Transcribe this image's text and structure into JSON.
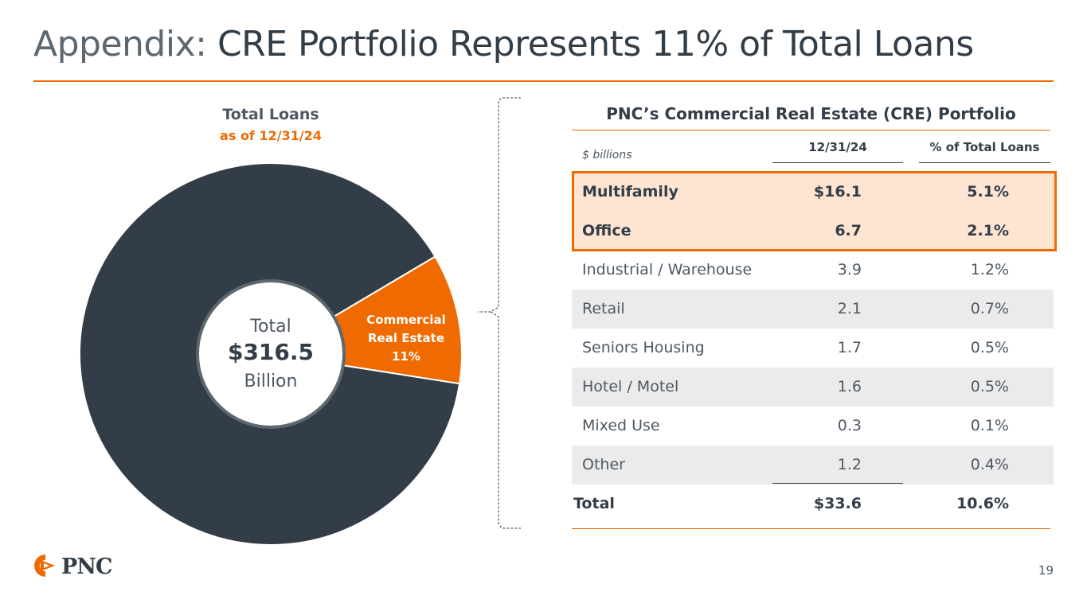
{
  "title": {
    "prefix": "Appendix:",
    "main": "CRE Portfolio Represents 11% of Total Loans"
  },
  "colors": {
    "accent": "#ef6a00",
    "dark": "#333d47",
    "highlight_fill": "#fde5d2"
  },
  "pie": {
    "title": "Total Loans",
    "subtitle": "as of 12/31/24",
    "center_line1": "Total",
    "center_line2": "$316.5",
    "center_line3": "Billion",
    "slice_label_1": "Commercial",
    "slice_label_2": "Real Estate",
    "slice_label_3": "11%"
  },
  "table": {
    "title": "PNC’s Commercial Real Estate (CRE) Portfolio",
    "units": "$ billions",
    "col_date": "12/31/24",
    "col_pct": "% of Total Loans",
    "rows": [
      {
        "category": "Multifamily",
        "value": "$16.1",
        "pct": "5.1%"
      },
      {
        "category": "Office",
        "value": "6.7",
        "pct": "2.1%"
      },
      {
        "category": "Industrial / Warehouse",
        "value": "3.9",
        "pct": "1.2%"
      },
      {
        "category": "Retail",
        "value": "2.1",
        "pct": "0.7%"
      },
      {
        "category": "Seniors Housing",
        "value": "1.7",
        "pct": "0.5%"
      },
      {
        "category": "Hotel / Motel",
        "value": "1.6",
        "pct": "0.5%"
      },
      {
        "category": "Mixed Use",
        "value": "0.3",
        "pct": "0.1%"
      },
      {
        "category": "Other",
        "value": "1.2",
        "pct": "0.4%"
      }
    ],
    "total": {
      "category": "Total",
      "value": "$33.6",
      "pct": "10.6%"
    }
  },
  "logo": {
    "text": "PNC"
  },
  "page_number": "19",
  "chart_data": [
    {
      "type": "pie",
      "title": "Total Loans",
      "subtitle": "as of 12/31/24",
      "total": "$316.5 Billion",
      "slices": [
        {
          "label": "Commercial Real Estate",
          "value": 11,
          "color": "#ef6a00"
        },
        {
          "label": "",
          "value": 89,
          "color": "#333d47"
        }
      ]
    },
    {
      "type": "table",
      "title": "PNC’s Commercial Real Estate (CRE) Portfolio",
      "units": "$ billions",
      "columns": [
        "12/31/24",
        "% of Total Loans"
      ],
      "rows": [
        [
          "Multifamily",
          16.1,
          5.1
        ],
        [
          "Office",
          6.7,
          2.1
        ],
        [
          "Industrial / Warehouse",
          3.9,
          1.2
        ],
        [
          "Retail",
          2.1,
          0.7
        ],
        [
          "Seniors Housing",
          1.7,
          0.5
        ],
        [
          "Hotel / Motel",
          1.6,
          0.5
        ],
        [
          "Mixed Use",
          0.3,
          0.1
        ],
        [
          "Other",
          1.2,
          0.4
        ]
      ],
      "total": [
        "Total",
        33.6,
        10.6
      ],
      "highlighted_rows": [
        "Multifamily",
        "Office"
      ]
    }
  ]
}
